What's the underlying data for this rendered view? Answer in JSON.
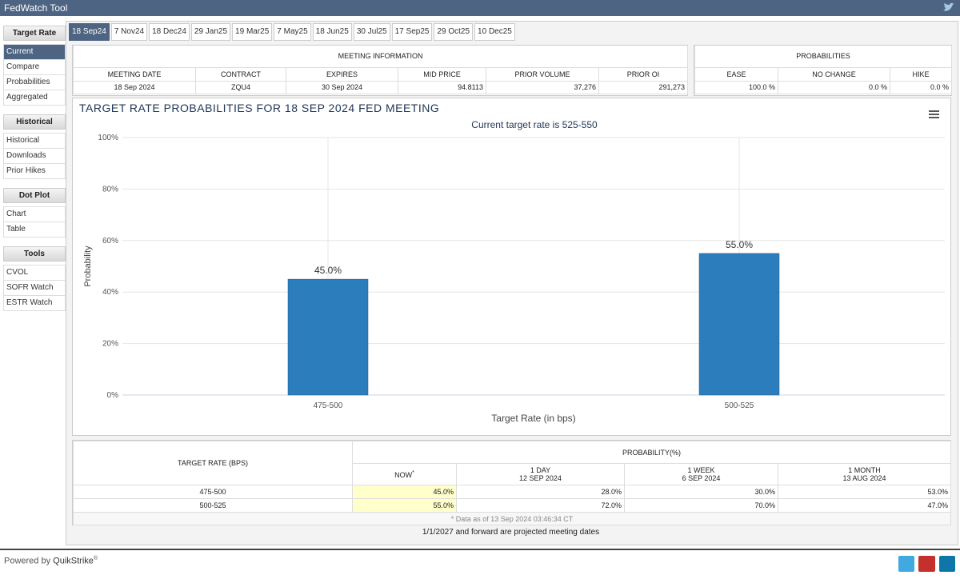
{
  "header": {
    "title": "FedWatch Tool"
  },
  "sidebar": [
    {
      "heading": "Target Rate",
      "items": [
        "Current",
        "Compare",
        "Probabilities",
        "Aggregated"
      ]
    },
    {
      "heading": "Historical",
      "items": [
        "Historical",
        "Downloads",
        "Prior Hikes"
      ]
    },
    {
      "heading": "Dot Plot",
      "items": [
        "Chart",
        "Table"
      ]
    },
    {
      "heading": "Tools",
      "items": [
        "CVOL",
        "SOFR Watch",
        "ESTR Watch"
      ]
    }
  ],
  "tabs": [
    "18 Sep24",
    "7 Nov24",
    "18 Dec24",
    "29 Jan25",
    "19 Mar25",
    "7 May25",
    "18 Jun25",
    "30 Jul25",
    "17 Sep25",
    "29 Oct25",
    "10 Dec25"
  ],
  "meeting_info": {
    "title": "MEETING INFORMATION",
    "columns": [
      "MEETING DATE",
      "CONTRACT",
      "EXPIRES",
      "MID PRICE",
      "PRIOR VOLUME",
      "PRIOR OI"
    ],
    "row": [
      "18 Sep 2024",
      "ZQU4",
      "30 Sep 2024",
      "94.8113",
      "37,276",
      "291,273"
    ]
  },
  "probabilities": {
    "title": "PROBABILITIES",
    "columns": [
      "EASE",
      "NO CHANGE",
      "HIKE"
    ],
    "row": [
      "100.0 %",
      "0.0 %",
      "0.0 %"
    ]
  },
  "chart_data": {
    "type": "bar",
    "title": "TARGET RATE PROBABILITIES FOR 18 SEP 2024 FED MEETING",
    "subtitle": "Current target rate is 525-550",
    "categories": [
      "475-500",
      "500-525"
    ],
    "values": [
      45,
      55
    ],
    "value_labels": [
      "45.0%",
      "55.0%"
    ],
    "color": "#2b7dbc",
    "xlabel": "Target Rate (in bps)",
    "ylabel": "Probability",
    "ylim": [
      0,
      100
    ],
    "yticks": [
      {
        "value": 0,
        "label": "0%"
      },
      {
        "value": 20,
        "label": "20%"
      },
      {
        "value": 40,
        "label": "40%"
      },
      {
        "value": 60,
        "label": "60%"
      },
      {
        "value": 80,
        "label": "80%"
      },
      {
        "value": 100,
        "label": "100%"
      }
    ],
    "grid": true
  },
  "table": {
    "corner": "TARGET RATE (BPS)",
    "group": "PROBABILITY(%)",
    "now": "NOW",
    "now_mark": "*",
    "columns": [
      [
        "1 DAY",
        "12 SEP 2024"
      ],
      [
        "1 WEEK",
        "6 SEP 2024"
      ],
      [
        "1 MONTH",
        "13 AUG 2024"
      ]
    ],
    "rows": [
      [
        "475-500",
        "45.0%",
        "28.0%",
        "30.0%",
        "53.0%"
      ],
      [
        "500-525",
        "55.0%",
        "72.0%",
        "70.0%",
        "47.0%"
      ]
    ],
    "note": "* Data as of 13 Sep 2024 03:46:34 CT"
  },
  "footer_note": "1/1/2027 and forward are projected meeting dates",
  "powered": {
    "text": "Powered by",
    "brand": "QuikStrike",
    "mark": "®"
  }
}
